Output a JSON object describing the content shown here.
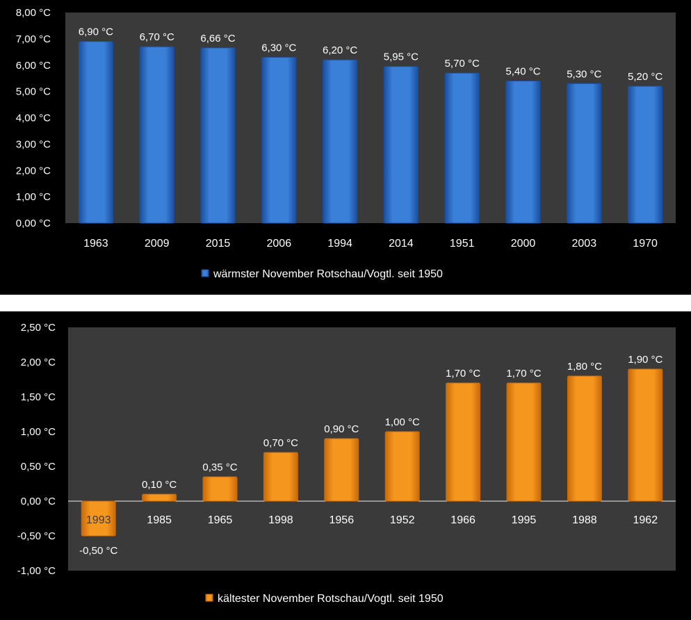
{
  "chart_data": [
    {
      "type": "bar",
      "categories": [
        "1963",
        "2009",
        "2015",
        "2006",
        "1994",
        "2014",
        "1951",
        "2000",
        "2003",
        "1970"
      ],
      "series": [
        {
          "name": "wärmster November Rotschau/Vogtl. seit 1950",
          "values": [
            6.9,
            6.7,
            6.66,
            6.3,
            6.2,
            5.95,
            5.7,
            5.4,
            5.3,
            5.2
          ],
          "labels": [
            "6,90 °C",
            "6,70 °C",
            "6,66 °C",
            "6,30 °C",
            "6,20 °C",
            "5,95 °C",
            "5,70 °C",
            "5,40 °C",
            "5,30 °C",
            "5,20 °C"
          ]
        }
      ],
      "ylim": [
        0,
        8
      ],
      "yticks": [
        0,
        1,
        2,
        3,
        4,
        5,
        6,
        7,
        8
      ],
      "ytick_labels": [
        "0,00 °C",
        "1,00 °C",
        "2,00 °C",
        "3,00 °C",
        "4,00 °C",
        "5,00 °C",
        "6,00 °C",
        "7,00 °C",
        "8,00 °C"
      ],
      "legend": "bottom",
      "grid": false,
      "colors": {
        "bar": "#3a7fd8",
        "bar_dark": "#1a4fa0",
        "plot_bg": "#3a3a3a"
      }
    },
    {
      "type": "bar",
      "categories": [
        "1993",
        "1985",
        "1965",
        "1998",
        "1956",
        "1952",
        "1966",
        "1995",
        "1988",
        "1962"
      ],
      "series": [
        {
          "name": "kältester November Rotschau/Vogtl. seit 1950",
          "values": [
            -0.5,
            0.1,
            0.35,
            0.7,
            0.9,
            1.0,
            1.7,
            1.7,
            1.8,
            1.9
          ],
          "labels": [
            "-0,50 °C",
            "0,10 °C",
            "0,35 °C",
            "0,70 °C",
            "0,90 °C",
            "1,00 °C",
            "1,70 °C",
            "1,70 °C",
            "1,80 °C",
            "1,90 °C"
          ]
        }
      ],
      "ylim": [
        -1,
        2.5
      ],
      "yticks": [
        -1,
        -0.5,
        0,
        0.5,
        1,
        1.5,
        2,
        2.5
      ],
      "ytick_labels": [
        "-1,00 °C",
        "-0,50 °C",
        "0,00 °C",
        "0,50 °C",
        "1,00 °C",
        "1,50 °C",
        "2,00 °C",
        "2,50 °C"
      ],
      "legend": "bottom",
      "grid": false,
      "colors": {
        "bar": "#f5961e",
        "bar_dark": "#c86a08",
        "plot_bg": "#3a3a3a"
      }
    }
  ]
}
